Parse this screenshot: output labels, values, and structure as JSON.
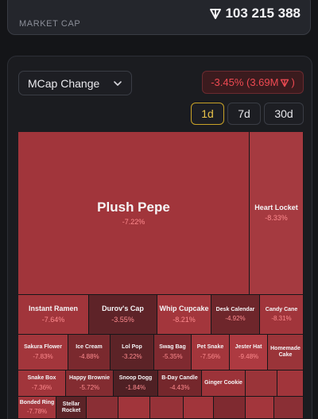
{
  "market_cap": {
    "label": "MARKET CAP",
    "value": "103 215 388",
    "currency_icon": "ton-icon"
  },
  "controls": {
    "metric_dropdown": "MCap Change",
    "change_summary": "-3.45% (3.69M",
    "change_summary_close": ")",
    "periods": [
      "1d",
      "7d",
      "30d"
    ],
    "active_period": "1d"
  },
  "colors": {
    "accent": "#e9c24a",
    "negative": "#ef4a52",
    "tile_deep": "#a3353c",
    "tile_mid": "#8a2f35",
    "tile_dark": "#5c2327"
  },
  "treemap": {
    "tiles": [
      {
        "name": "Plush Pepe",
        "change": "-7.22%"
      },
      {
        "name": "Heart Locket",
        "change": "-8.33%"
      },
      {
        "name": "Instant Ramen",
        "change": "-7.64%"
      },
      {
        "name": "Durov's Cap",
        "change": "-3.55%"
      },
      {
        "name": "Whip Cupcake",
        "change": "-8.21%"
      },
      {
        "name": "Desk Calendar",
        "change": "-4.92%"
      },
      {
        "name": "Candy Cane",
        "change": "-8.31%"
      },
      {
        "name": "Sakura Flower",
        "change": "-7.83%"
      },
      {
        "name": "Ice Cream",
        "change": "-4.88%"
      },
      {
        "name": "Lol Pop",
        "change": "-3.22%"
      },
      {
        "name": "Swag Bag",
        "change": "-5.35%"
      },
      {
        "name": "Pet Snake",
        "change": "-7.56%"
      },
      {
        "name": "Jester Hat",
        "change": "-9.48%"
      },
      {
        "name": "Homemade Cake",
        "change": ""
      },
      {
        "name": "Snake Box",
        "change": "-7.36%"
      },
      {
        "name": "Happy Brownie",
        "change": "-5.72%"
      },
      {
        "name": "Snoop Dogg",
        "change": "-1.84%"
      },
      {
        "name": "B-Day Candle",
        "change": "-4.43%"
      },
      {
        "name": "Ginger Cookie",
        "change": ""
      },
      {
        "name": "Bonded Ring",
        "change": "-7.78%"
      },
      {
        "name": "Stellar Rocket",
        "change": ""
      }
    ]
  }
}
